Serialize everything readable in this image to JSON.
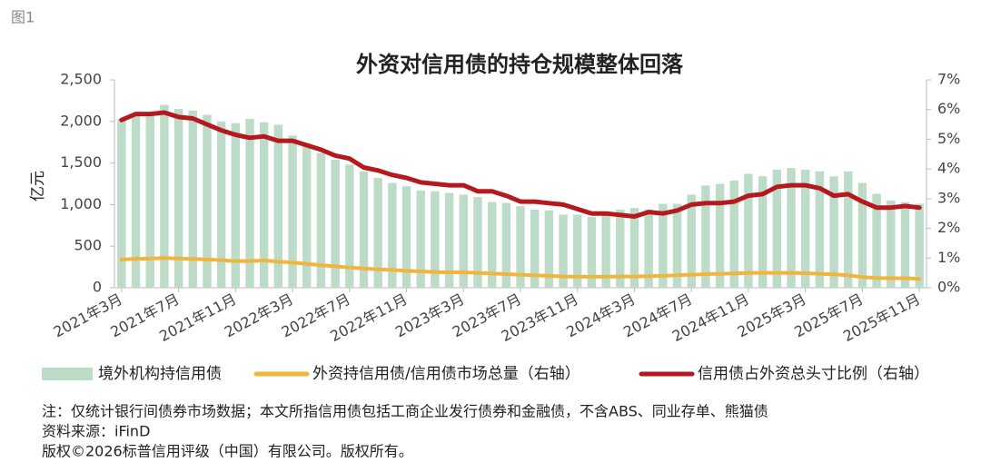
{
  "chart_data": {
    "type": "combo",
    "figure_label": "图1",
    "title": "外资对信用债的持仓规模整体回落",
    "y_label": "亿元",
    "categories": [
      "2021年3月",
      null,
      null,
      null,
      "2021年7月",
      null,
      null,
      null,
      "2021年11月",
      null,
      null,
      null,
      "2022年3月",
      null,
      null,
      null,
      "2022年7月",
      null,
      null,
      null,
      "2022年11月",
      null,
      null,
      null,
      "2023年3月",
      null,
      null,
      null,
      "2023年7月",
      null,
      null,
      null,
      "2023年11月",
      null,
      null,
      null,
      "2024年3月",
      null,
      null,
      null,
      "2024年7月",
      null,
      null,
      null,
      "2024年11月",
      null,
      null,
      null,
      "2025年3月",
      null,
      null,
      null,
      "2025年7月",
      null,
      null,
      null,
      "2025年11月"
    ],
    "series": [
      {
        "name": "境外机构持信用债",
        "type": "bar",
        "axis": "y",
        "color": "#bcdcc8",
        "values": [
          2030,
          2080,
          2110,
          2200,
          2150,
          2130,
          2080,
          2000,
          1980,
          2030,
          1990,
          1960,
          1830,
          1720,
          1620,
          1540,
          1480,
          1400,
          1320,
          1260,
          1220,
          1170,
          1160,
          1140,
          1120,
          1090,
          1030,
          1020,
          980,
          940,
          930,
          880,
          880,
          850,
          920,
          940,
          960,
          940,
          1010,
          1010,
          1120,
          1230,
          1250,
          1290,
          1370,
          1340,
          1420,
          1440,
          1420,
          1400,
          1340,
          1400,
          1260,
          1130,
          1050,
          1030,
          1010
        ]
      },
      {
        "name": "外资持信用债/信用债市场总量（右轴）",
        "type": "line",
        "axis": "y2",
        "color": "#f0b53c",
        "values": [
          0.95,
          0.97,
          0.98,
          1.0,
          0.98,
          0.97,
          0.95,
          0.93,
          0.9,
          0.9,
          0.92,
          0.88,
          0.85,
          0.8,
          0.76,
          0.72,
          0.68,
          0.65,
          0.62,
          0.6,
          0.57,
          0.55,
          0.53,
          0.52,
          0.52,
          0.5,
          0.48,
          0.46,
          0.44,
          0.42,
          0.4,
          0.38,
          0.37,
          0.37,
          0.37,
          0.38,
          0.38,
          0.39,
          0.4,
          0.42,
          0.44,
          0.46,
          0.47,
          0.48,
          0.5,
          0.5,
          0.5,
          0.5,
          0.49,
          0.47,
          0.45,
          0.42,
          0.36,
          0.33,
          0.32,
          0.32,
          0.3
        ]
      },
      {
        "name": "信用债占外资总头寸比例（右轴）",
        "type": "line",
        "axis": "y2",
        "color": "#b5191e",
        "values": [
          5.65,
          5.85,
          5.85,
          5.9,
          5.75,
          5.7,
          5.5,
          5.3,
          5.15,
          5.05,
          5.1,
          4.95,
          4.95,
          4.8,
          4.65,
          4.45,
          4.35,
          4.05,
          3.95,
          3.8,
          3.7,
          3.55,
          3.5,
          3.45,
          3.45,
          3.25,
          3.25,
          3.1,
          2.9,
          2.9,
          2.85,
          2.8,
          2.65,
          2.5,
          2.5,
          2.45,
          2.4,
          2.55,
          2.5,
          2.6,
          2.8,
          2.85,
          2.85,
          2.9,
          3.1,
          3.15,
          3.4,
          3.45,
          3.45,
          3.35,
          3.1,
          3.15,
          2.9,
          2.7,
          2.7,
          2.75,
          2.7
        ]
      }
    ],
    "ylim": [
      0,
      2500
    ],
    "yticks": [
      0,
      500,
      {
        "value": 1000,
        "label": "1,000"
      },
      {
        "value": 1500,
        "label": "1,500"
      },
      {
        "value": 2000,
        "label": "2,000"
      },
      {
        "value": 2500,
        "label": "2,500"
      }
    ],
    "y2lim": [
      0,
      7
    ],
    "y2ticks": [
      {
        "value": 0,
        "label": "0%"
      },
      {
        "value": 1,
        "label": "1%"
      },
      {
        "value": 2,
        "label": "2%"
      },
      {
        "value": 3,
        "label": "3%"
      },
      {
        "value": 4,
        "label": "4%"
      },
      {
        "value": 5,
        "label": "5%"
      },
      {
        "value": 6,
        "label": "6%"
      },
      {
        "value": 7,
        "label": "7%"
      }
    ],
    "grid": false,
    "legend": "bottom",
    "notes": [
      "注：仅统计银行间债券市场数据；本文所指信用债包括工商企业发行债券和金融债，不含ABS、同业存单、熊猫债",
      "资料来源：iFinD",
      "版权©2026标普信用评级（中国）有限公司。版权所有。"
    ]
  }
}
